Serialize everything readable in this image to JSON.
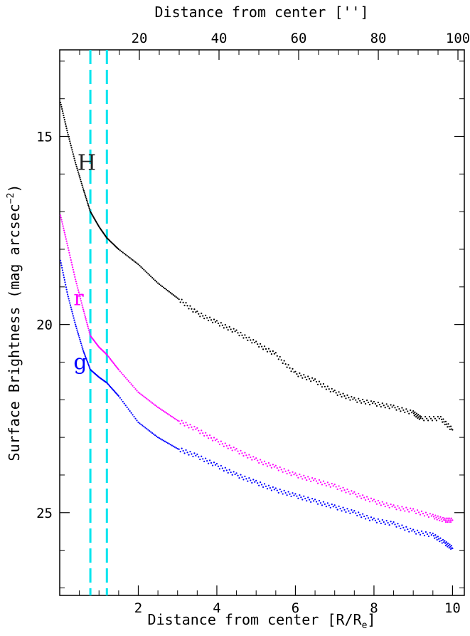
{
  "chart_data": {
    "type": "scatter",
    "title": "",
    "xlabel": "Distance from center [R/R",
    "xlabel_sub": "e",
    "xlabel_close": "]",
    "x2label": "Distance from center ['']",
    "ylabel": "Surface Brightness (mag arcsec",
    "ylabel_sup": "−2",
    "ylabel_close": ")",
    "xlim": [
      0,
      10.3
    ],
    "x2lim": [
      0,
      101.6
    ],
    "ylim": [
      27.2,
      12.7
    ],
    "y_inverted": true,
    "grid": false,
    "xticks": [
      2,
      4,
      6,
      8,
      10
    ],
    "x2ticks": [
      20,
      40,
      60,
      80,
      100
    ],
    "yticks": [
      15,
      20,
      25
    ],
    "vlines": [
      {
        "x": 0.78,
        "color": "#00e5ee",
        "style": "dashed"
      },
      {
        "x": 1.2,
        "color": "#00e5ee",
        "style": "dashed"
      }
    ],
    "series": [
      {
        "name": "H",
        "color": "#000000",
        "label_at": [
          0.45,
          15.7
        ],
        "x": [
          0.02,
          0.2,
          0.4,
          0.6,
          0.78,
          1.0,
          1.2,
          1.5,
          2.0,
          2.5,
          3.0,
          3.5,
          4.0,
          4.5,
          5.0,
          5.5,
          6.0,
          6.5,
          7.0,
          7.5,
          8.0,
          8.5,
          9.0,
          9.2,
          9.7,
          10.0
        ],
        "y": [
          14.1,
          14.9,
          15.7,
          16.4,
          17.0,
          17.4,
          17.7,
          18.0,
          18.4,
          18.9,
          19.3,
          19.7,
          19.95,
          20.2,
          20.5,
          20.8,
          21.3,
          21.5,
          21.8,
          22.0,
          22.1,
          22.2,
          22.35,
          22.5,
          22.5,
          22.8
        ]
      },
      {
        "name": "r",
        "color": "#ff00ff",
        "label_at": [
          0.35,
          19.3
        ],
        "x": [
          0.02,
          0.2,
          0.4,
          0.6,
          0.78,
          1.0,
          1.2,
          1.5,
          2.0,
          2.5,
          3.0,
          3.5,
          4.0,
          4.5,
          5.0,
          5.5,
          6.0,
          6.5,
          7.0,
          7.5,
          8.0,
          8.5,
          9.0,
          9.5,
          9.8,
          10.0
        ],
        "y": [
          17.1,
          17.9,
          18.8,
          19.6,
          20.3,
          20.6,
          20.8,
          21.2,
          21.8,
          22.2,
          22.55,
          22.8,
          23.1,
          23.35,
          23.6,
          23.8,
          24.0,
          24.15,
          24.3,
          24.5,
          24.7,
          24.85,
          24.95,
          25.1,
          25.2,
          25.2
        ]
      },
      {
        "name": "g",
        "color": "#0000ff",
        "label_at": [
          0.35,
          21.0
        ],
        "x": [
          0.02,
          0.2,
          0.4,
          0.6,
          0.78,
          1.0,
          1.2,
          1.5,
          2.0,
          2.5,
          3.0,
          3.5,
          4.0,
          4.5,
          5.0,
          5.5,
          6.0,
          6.5,
          7.0,
          7.5,
          8.0,
          8.5,
          9.0,
          9.5,
          9.8,
          10.0
        ],
        "y": [
          18.3,
          19.2,
          20.0,
          20.7,
          21.2,
          21.4,
          21.55,
          21.9,
          22.6,
          23.0,
          23.3,
          23.5,
          23.75,
          24.0,
          24.2,
          24.4,
          24.55,
          24.7,
          24.85,
          25.0,
          25.2,
          25.3,
          25.5,
          25.6,
          25.8,
          25.95
        ]
      }
    ]
  }
}
